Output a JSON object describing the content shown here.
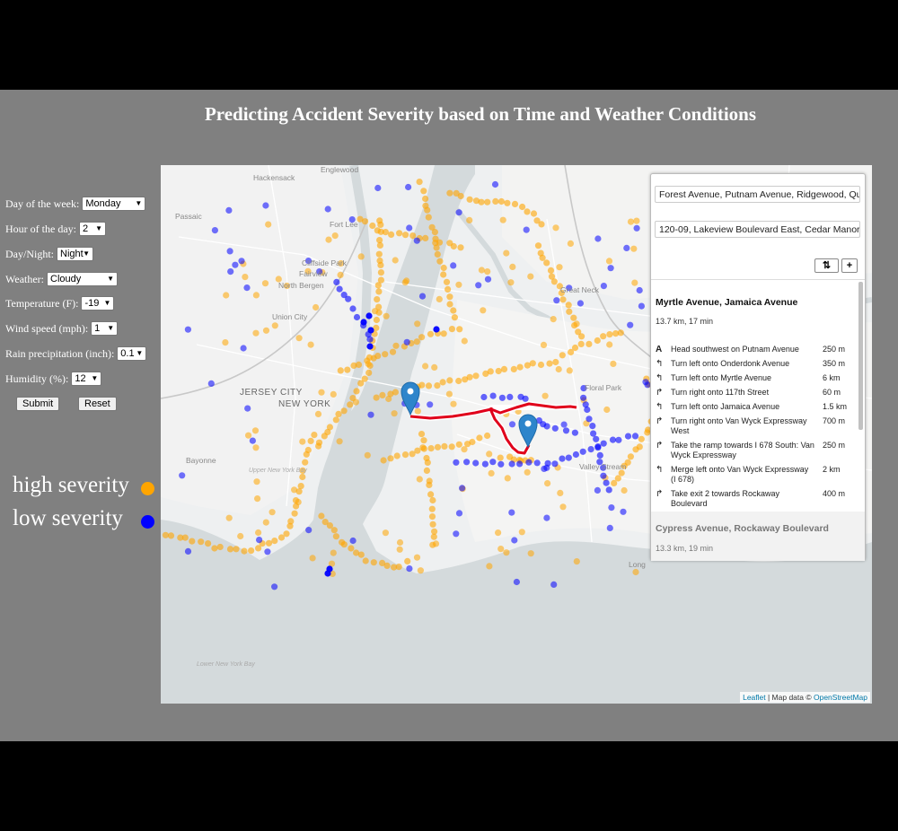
{
  "title": "Predicting Accident Severity based on Time and Weather Conditions",
  "form": {
    "day_of_week": {
      "label": "Day of the week:",
      "value": "Monday"
    },
    "hour": {
      "label": "Hour of the day:",
      "value": "2"
    },
    "day_night": {
      "label": "Day/Night:",
      "value": "Night"
    },
    "weather": {
      "label": "Weather:",
      "value": "Cloudy"
    },
    "temperature": {
      "label": "Temperature (F):",
      "value": "-19"
    },
    "wind_speed": {
      "label": "Wind speed (mph):",
      "value": "1"
    },
    "rain": {
      "label": "Rain precipitation (inch):",
      "value": "0.1"
    },
    "humidity": {
      "label": "Humidity (%):",
      "value": "12"
    },
    "submit_label": "Submit",
    "reset_label": "Reset"
  },
  "legend": {
    "high": {
      "label": "high severity",
      "color": "#ffa500"
    },
    "low": {
      "label": "low severity",
      "color": "#0000ff"
    }
  },
  "map": {
    "labels": {
      "englewood": "Englewood",
      "hackensack": "Hackensack",
      "passaic": "Passaic",
      "fort_lee": "Fort Lee",
      "cliffside": "Cliffside Park",
      "fairview": "Fairview",
      "north_bergen": "North Bergen",
      "union_city": "Union City",
      "great_neck": "Great Neck",
      "jersey_city": "JERSEY CITY",
      "new_york": "NEW YORK",
      "bayonne": "Bayonne",
      "upper_bay": "Upper New York Bay",
      "floral_park": "Floral Park",
      "valley_stream": "Valley Stream",
      "lower_bay": "Lower New York Bay",
      "long": "Long"
    },
    "attribution": {
      "leaflet": "Leaflet",
      "sep": " | Map data © ",
      "osm": "OpenStreetMap"
    }
  },
  "routing": {
    "from": "Forest Avenue, Putnam Avenue, Ridgewood, Queens",
    "to": "120-09, Lakeview Boulevard East, Cedar Manor Hollis",
    "swap_label": "⇅",
    "add_label": "+",
    "route1": {
      "name": "Myrtle Avenue, Jamaica Avenue",
      "summary": "13.7 km, 17 min",
      "steps": [
        {
          "icon": "A",
          "text": "Head southwest on Putnam Avenue",
          "dist": "250 m"
        },
        {
          "icon": "↰",
          "text": "Turn left onto Onderdonk Avenue",
          "dist": "350 m"
        },
        {
          "icon": "↰",
          "text": "Turn left onto Myrtle Avenue",
          "dist": "6 km"
        },
        {
          "icon": "↱",
          "text": "Turn right onto 117th Street",
          "dist": "60 m"
        },
        {
          "icon": "↰",
          "text": "Turn left onto Jamaica Avenue",
          "dist": "1.5 km"
        },
        {
          "icon": "↱",
          "text": "Turn right onto Van Wyck Expressway West",
          "dist": "700 m"
        },
        {
          "icon": "↱",
          "text": "Take the ramp towards I 678 South: Van Wyck Expressway",
          "dist": "250 m"
        },
        {
          "icon": "↰",
          "text": "Merge left onto Van Wyck Expressway (I 678)",
          "dist": "2 km"
        },
        {
          "icon": "↱",
          "text": "Take exit 2 towards Rockaway Boulevard",
          "dist": "400 m"
        }
      ]
    },
    "route2": {
      "name": "Cypress Avenue, Rockaway Boulevard",
      "summary": "13.3 km, 19 min"
    }
  }
}
